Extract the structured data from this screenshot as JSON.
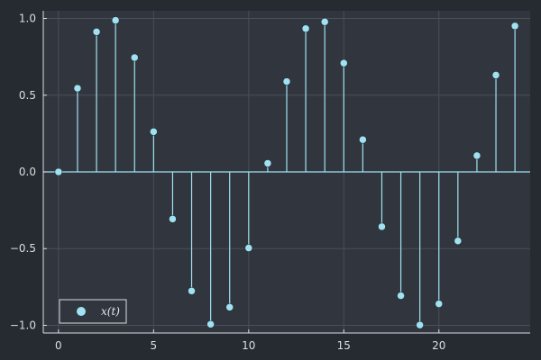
{
  "chart_data": {
    "type": "stem",
    "x": [
      0,
      1,
      2,
      3,
      4,
      5,
      6,
      7,
      8,
      9,
      10,
      11,
      12,
      13,
      14,
      15,
      16,
      17,
      18,
      19,
      20,
      21,
      22,
      23,
      24
    ],
    "values": [
      0.0,
      0.545,
      0.913,
      0.988,
      0.745,
      0.262,
      -0.307,
      -0.776,
      -0.993,
      -0.882,
      -0.496,
      0.056,
      0.589,
      0.934,
      0.978,
      0.709,
      0.21,
      -0.357,
      -0.807,
      -0.998,
      -0.86,
      -0.45,
      0.106,
      0.631,
      0.951
    ],
    "series": [
      {
        "name": "x(t)"
      }
    ],
    "xlim": [
      -0.8,
      24.8
    ],
    "ylim": [
      -1.05,
      1.05
    ],
    "x_ticks": [
      0,
      5,
      10,
      15,
      20
    ],
    "y_ticks": [
      -1.0,
      -0.5,
      0.0,
      0.5,
      1.0
    ],
    "x_tick_labels": [
      "0",
      "5",
      "10",
      "15",
      "20"
    ],
    "y_tick_labels": [
      "−1.0",
      "−0.5",
      "0.0",
      "0.5",
      "1.0"
    ],
    "grid": true,
    "legend_position": "bottom-left"
  },
  "colors": {
    "background": "#262a31",
    "plot_background": "#31353d",
    "grid": "#4a4f58",
    "axis": "#d9dde4",
    "series": "#9fe2f2"
  }
}
